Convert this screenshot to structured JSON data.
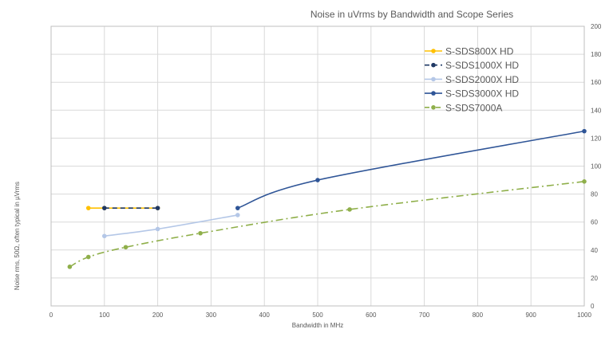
{
  "chart_data": {
    "type": "line",
    "title": "Noise in uVrms by Bandwidth and Scope Series",
    "xlabel": "Bandwidth in MHz",
    "ylabel": "Noise rms, 50Ω, often typical in µVrms",
    "xlim": [
      0,
      1000
    ],
    "ylim": [
      0,
      200
    ],
    "x_ticks": [
      0,
      100,
      200,
      300,
      400,
      500,
      600,
      700,
      800,
      900,
      1000
    ],
    "y_ticks": [
      0,
      20,
      40,
      60,
      80,
      100,
      120,
      140,
      160,
      180,
      200
    ],
    "y_axis_side": "right",
    "grid": true,
    "legend_position": "top-right",
    "series": [
      {
        "name": "S-SDS800X HD",
        "color": "#FFC000",
        "dash": "solid",
        "x": [
          70,
          100,
          200
        ],
        "values": [
          70,
          70,
          70
        ]
      },
      {
        "name": "S-SDS1000X HD",
        "color": "#1F3864",
        "dash": "dash",
        "x": [
          100,
          200
        ],
        "values": [
          70,
          70
        ]
      },
      {
        "name": "S-SDS2000X HD",
        "color": "#B4C7E7",
        "dash": "solid",
        "x": [
          100,
          200,
          350
        ],
        "values": [
          50,
          55,
          65
        ]
      },
      {
        "name": "S-SDS3000X HD",
        "color": "#2F5597",
        "dash": "solid",
        "x": [
          350,
          500,
          1000
        ],
        "values": [
          70,
          90,
          125
        ]
      },
      {
        "name": "S-SDS7000A",
        "color": "#8FAF4A",
        "dash": "dash-dot",
        "x": [
          35,
          70,
          140,
          280,
          560,
          1000
        ],
        "values": [
          28,
          35,
          42,
          52,
          69,
          89
        ]
      }
    ]
  }
}
